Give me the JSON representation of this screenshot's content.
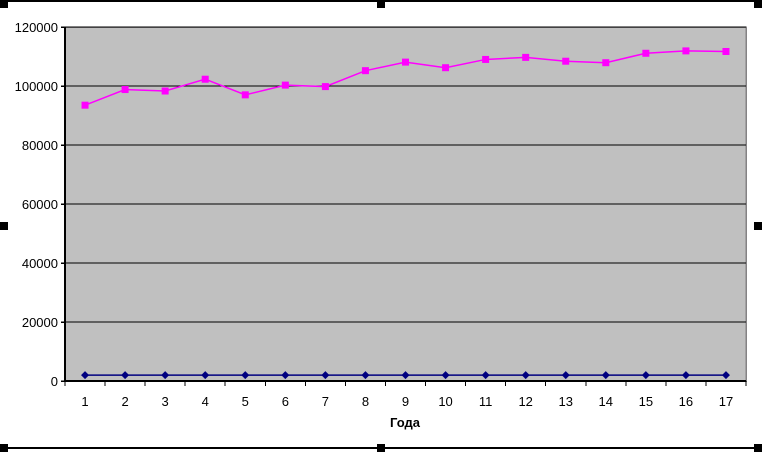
{
  "chart_data": {
    "type": "line",
    "title": "",
    "xlabel": "Года",
    "ylabel": "",
    "categories": [
      1,
      2,
      3,
      4,
      5,
      6,
      7,
      8,
      9,
      10,
      11,
      12,
      13,
      14,
      15,
      16,
      17
    ],
    "ylim": [
      0,
      120000
    ],
    "yticks": [
      0,
      20000,
      40000,
      60000,
      80000,
      100000,
      120000
    ],
    "grid": true,
    "legend_position": "none",
    "plot_background": "#c0c0c0",
    "plot_border_color": "#848284",
    "gridline_color": "#000000",
    "axis_color": "#000000",
    "series": [
      {
        "name": "series-1-blue",
        "color": "#000080",
        "marker": "diamond",
        "values": [
          2000,
          2000,
          2000,
          2000,
          2000,
          2000,
          2000,
          2000,
          2000,
          2000,
          2000,
          2000,
          2000,
          2000,
          2000,
          2000,
          2000
        ]
      },
      {
        "name": "series-2-magenta",
        "color": "#ff00ff",
        "marker": "square",
        "values": [
          93500,
          98800,
          98300,
          102300,
          97000,
          100300,
          99800,
          105200,
          108100,
          106200,
          109000,
          109700,
          108400,
          107900,
          111100,
          111900,
          111700
        ]
      }
    ]
  },
  "selection": {
    "handle_color": "#000000",
    "handles": [
      "top-left",
      "top-center",
      "top-right",
      "middle-left",
      "middle-right",
      "bottom-left",
      "bottom-center",
      "bottom-right"
    ]
  }
}
